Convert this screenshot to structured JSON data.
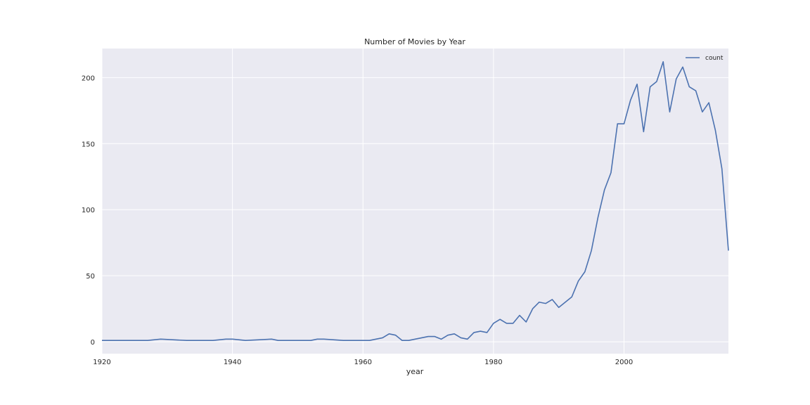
{
  "chart_data": {
    "type": "line",
    "title": "Number of Movies by Year",
    "xlabel": "year",
    "ylabel": "",
    "xlim": [
      1920,
      2016
    ],
    "ylim": [
      -9,
      222
    ],
    "xticks": [
      1920,
      1940,
      1960,
      1980,
      2000
    ],
    "yticks": [
      0,
      50,
      100,
      150,
      200
    ],
    "grid": true,
    "legend": "top-right",
    "colors": {
      "background": "#eaeaf2",
      "grid": "#ffffff",
      "line": "#4c72b0"
    },
    "series": [
      {
        "name": "count",
        "x": [
          1920,
          1927,
          1929,
          1933,
          1937,
          1939,
          1940,
          1942,
          1946,
          1947,
          1952,
          1953,
          1954,
          1957,
          1961,
          1963,
          1964,
          1965,
          1966,
          1967,
          1970,
          1971,
          1972,
          1973,
          1974,
          1975,
          1976,
          1977,
          1978,
          1979,
          1980,
          1981,
          1982,
          1983,
          1984,
          1985,
          1986,
          1987,
          1988,
          1989,
          1990,
          1992,
          1993,
          1994,
          1995,
          1996,
          1997,
          1998,
          1999,
          2000,
          2001,
          2002,
          2003,
          2004,
          2005,
          2006,
          2007,
          2008,
          2009,
          2010,
          2011,
          2012,
          2013,
          2014,
          2015,
          2016
        ],
        "values": [
          1,
          1,
          2,
          1,
          1,
          2,
          2,
          1,
          2,
          1,
          1,
          2,
          2,
          1,
          1,
          3,
          6,
          5,
          1,
          1,
          4,
          4,
          2,
          5,
          6,
          3,
          2,
          7,
          8,
          7,
          14,
          17,
          14,
          14,
          20,
          15,
          25,
          30,
          29,
          32,
          26,
          34,
          46,
          53,
          69,
          94,
          115,
          128,
          165,
          165,
          183,
          195,
          159,
          193,
          197,
          212,
          174,
          199,
          208,
          193,
          190,
          174,
          181,
          160,
          131,
          69
        ]
      }
    ]
  }
}
